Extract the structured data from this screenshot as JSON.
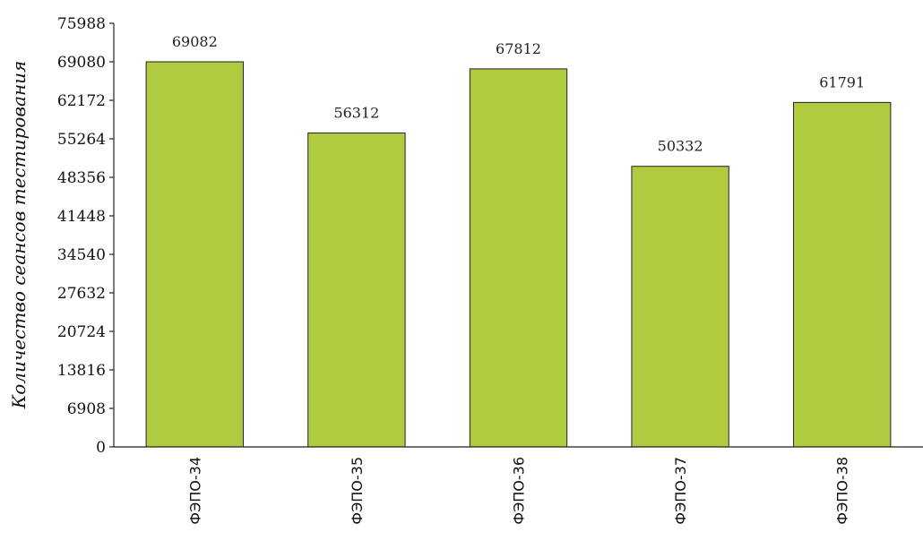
{
  "chart_data": {
    "type": "bar",
    "categories": [
      "ФЭПО-34",
      "ФЭПО-35",
      "ФЭПО-36",
      "ФЭПО-37",
      "ФЭПО-38"
    ],
    "values": [
      69082,
      56312,
      67812,
      50332,
      61791
    ],
    "data_labels": [
      "69082",
      "56312",
      "67812",
      "50332",
      "61791"
    ],
    "title": "",
    "xlabel": "",
    "ylabel": "Количество сеансов тестирования",
    "ylim": [
      0,
      75988
    ],
    "yticks": [
      0,
      6908,
      13816,
      20724,
      27632,
      34540,
      41448,
      48356,
      55264,
      62172,
      69080,
      75988
    ],
    "grid": false,
    "legend": "none",
    "bar_color": "#b0cb3f",
    "bar_edge_color": "#222222"
  }
}
